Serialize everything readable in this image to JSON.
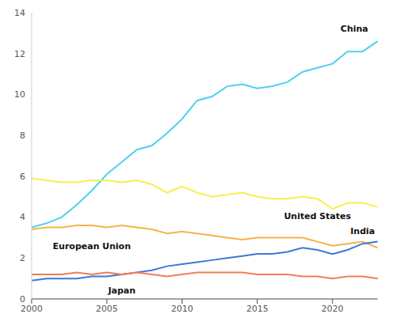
{
  "chart_data": {
    "type": "line",
    "x": [
      2000,
      2001,
      2002,
      2003,
      2004,
      2005,
      2006,
      2007,
      2008,
      2009,
      2010,
      2011,
      2012,
      2013,
      2014,
      2015,
      2016,
      2017,
      2018,
      2019,
      2020,
      2021,
      2022,
      2023
    ],
    "series": [
      {
        "name": "China",
        "color": "#4fd0f2",
        "values": [
          3.5,
          3.7,
          4.0,
          4.6,
          5.3,
          6.1,
          6.7,
          7.3,
          7.5,
          8.1,
          8.8,
          9.7,
          9.9,
          10.4,
          10.5,
          10.3,
          10.4,
          10.6,
          11.1,
          11.3,
          11.5,
          12.1,
          12.1,
          12.6
        ]
      },
      {
        "name": "United States",
        "color": "#f7f04a",
        "values": [
          5.9,
          5.8,
          5.7,
          5.7,
          5.8,
          5.8,
          5.7,
          5.8,
          5.6,
          5.2,
          5.5,
          5.2,
          5.0,
          5.1,
          5.2,
          5.0,
          4.9,
          4.9,
          5.0,
          4.9,
          4.4,
          4.7,
          4.7,
          4.5
        ]
      },
      {
        "name": "European Union",
        "color": "#f5b444",
        "values": [
          3.4,
          3.5,
          3.5,
          3.6,
          3.6,
          3.5,
          3.6,
          3.5,
          3.4,
          3.2,
          3.3,
          3.2,
          3.1,
          3.0,
          2.9,
          3.0,
          3.0,
          3.0,
          3.0,
          2.8,
          2.6,
          2.7,
          2.8,
          2.5
        ]
      },
      {
        "name": "India",
        "color": "#3b78d8",
        "values": [
          0.9,
          1.0,
          1.0,
          1.0,
          1.1,
          1.1,
          1.2,
          1.3,
          1.4,
          1.6,
          1.7,
          1.8,
          1.9,
          2.0,
          2.1,
          2.2,
          2.2,
          2.3,
          2.5,
          2.4,
          2.2,
          2.4,
          2.7,
          2.8
        ]
      },
      {
        "name": "Japan",
        "color": "#f27c56",
        "values": [
          1.2,
          1.2,
          1.2,
          1.3,
          1.2,
          1.3,
          1.2,
          1.3,
          1.2,
          1.1,
          1.2,
          1.3,
          1.3,
          1.3,
          1.3,
          1.2,
          1.2,
          1.2,
          1.1,
          1.1,
          1.0,
          1.1,
          1.1,
          1.0
        ]
      }
    ],
    "xlim": [
      2000,
      2023
    ],
    "ylim": [
      0,
      14
    ],
    "xticks": [
      2000,
      2005,
      2010,
      2015,
      2020
    ],
    "yticks": [
      0,
      2,
      4,
      6,
      8,
      10,
      12,
      14
    ],
    "grid": false
  }
}
